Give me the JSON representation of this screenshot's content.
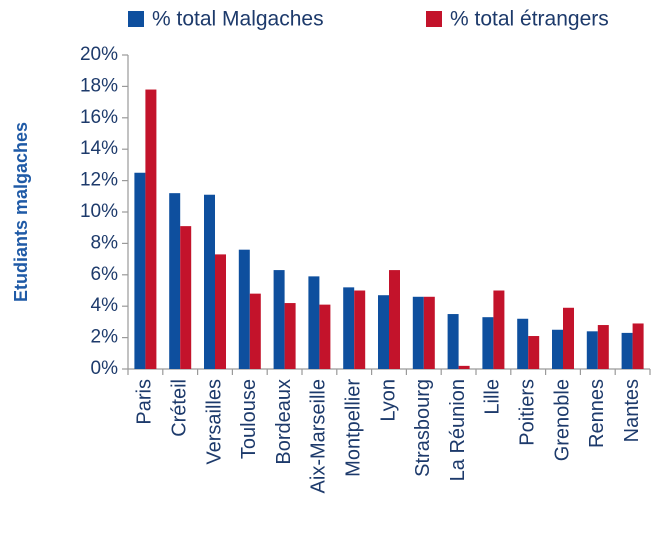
{
  "chart_data": {
    "type": "bar",
    "y_label": "Etudiants malgaches",
    "categories": [
      "Paris",
      "Créteil",
      "Versailles",
      "Toulouse",
      "Bordeaux",
      "Aix-Marseille",
      "Montpellier",
      "Lyon",
      "Strasbourg",
      "La Réunion",
      "Lille",
      "Poitiers",
      "Grenoble",
      "Rennes",
      "Nantes"
    ],
    "series": [
      {
        "name": "% total Malgaches",
        "color": "#0e4f9e",
        "values": [
          12.5,
          11.2,
          11.1,
          7.6,
          6.3,
          5.9,
          5.2,
          4.7,
          4.6,
          3.5,
          3.3,
          3.2,
          2.5,
          2.4,
          2.3
        ]
      },
      {
        "name": "% total étrangers",
        "color": "#c3132b",
        "values": [
          17.8,
          9.1,
          7.3,
          4.8,
          4.2,
          4.1,
          5.0,
          6.3,
          4.6,
          0.2,
          5.0,
          2.1,
          3.9,
          2.8,
          2.9
        ]
      }
    ],
    "ylim": [
      0,
      20
    ],
    "yticks": [
      {
        "value": 0,
        "label": "0%"
      },
      {
        "value": 2,
        "label": "2%"
      },
      {
        "value": 4,
        "label": "4%"
      },
      {
        "value": 6,
        "label": "6%"
      },
      {
        "value": 8,
        "label": "8%"
      },
      {
        "value": 10,
        "label": "10%"
      },
      {
        "value": 12,
        "label": "12%"
      },
      {
        "value": 14,
        "label": "14%"
      },
      {
        "value": 16,
        "label": "16%"
      },
      {
        "value": 18,
        "label": "18%"
      },
      {
        "value": 20,
        "label": "20%"
      }
    ],
    "grid": false,
    "legend": "top"
  }
}
